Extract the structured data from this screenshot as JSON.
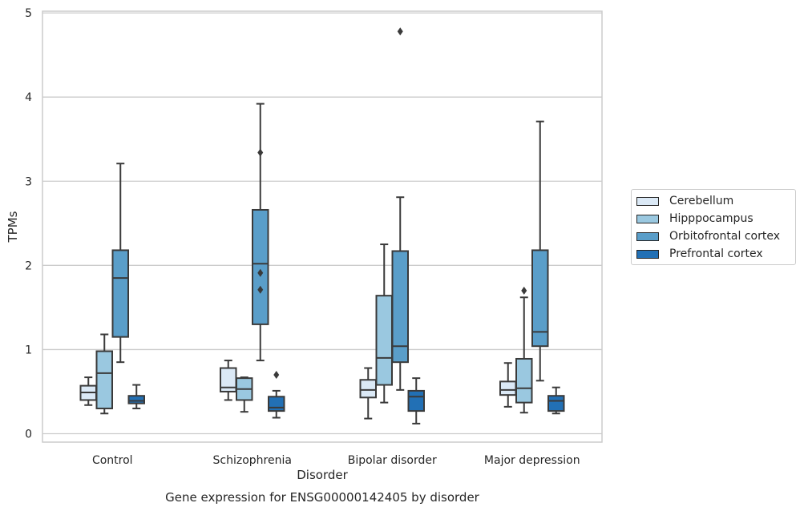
{
  "chart_data": {
    "type": "box",
    "title": "Gene expression for ENSG00000142405 by disorder",
    "xlabel": "Disorder",
    "ylabel": "TPMs",
    "ylim": [
      -0.1,
      5.02
    ],
    "yticks": [
      "0",
      "1",
      "2",
      "3",
      "4",
      "5"
    ],
    "grid": "horizontal",
    "legend_position": "right",
    "categories": [
      "Control",
      "Schizophrenia",
      "Bipolar disorder",
      "Major depression"
    ],
    "series": [
      {
        "name": "Cerebellum",
        "color": "#dbe9f6",
        "boxes": [
          {
            "whisker_low": 0.34,
            "q1": 0.4,
            "median": 0.49,
            "q3": 0.57,
            "whisker_high": 0.67,
            "outliers": []
          },
          {
            "whisker_low": 0.4,
            "q1": 0.5,
            "median": 0.55,
            "q3": 0.78,
            "whisker_high": 0.87,
            "outliers": []
          },
          {
            "whisker_low": 0.18,
            "q1": 0.43,
            "median": 0.52,
            "q3": 0.64,
            "whisker_high": 0.78,
            "outliers": []
          },
          {
            "whisker_low": 0.32,
            "q1": 0.46,
            "median": 0.52,
            "q3": 0.62,
            "whisker_high": 0.84,
            "outliers": []
          }
        ]
      },
      {
        "name": "Hipppocampus",
        "color": "#9ac8e0",
        "boxes": [
          {
            "whisker_low": 0.24,
            "q1": 0.3,
            "median": 0.72,
            "q3": 0.98,
            "whisker_high": 1.18,
            "outliers": []
          },
          {
            "whisker_low": 0.26,
            "q1": 0.4,
            "median": 0.53,
            "q3": 0.66,
            "whisker_high": 0.67,
            "outliers": []
          },
          {
            "whisker_low": 0.37,
            "q1": 0.58,
            "median": 0.9,
            "q3": 1.64,
            "whisker_high": 2.25,
            "outliers": []
          },
          {
            "whisker_low": 0.25,
            "q1": 0.37,
            "median": 0.54,
            "q3": 0.89,
            "whisker_high": 1.62,
            "outliers": [
              1.7
            ]
          }
        ]
      },
      {
        "name": "Orbitofrontal cortex",
        "color": "#5a9ec9",
        "boxes": [
          {
            "whisker_low": 0.85,
            "q1": 1.15,
            "median": 1.85,
            "q3": 2.18,
            "whisker_high": 3.21,
            "outliers": []
          },
          {
            "whisker_low": 0.87,
            "q1": 1.3,
            "median": 2.02,
            "q3": 2.66,
            "whisker_high": 3.92,
            "outliers": [
              1.71,
              1.91,
              3.34
            ]
          },
          {
            "whisker_low": 0.52,
            "q1": 0.85,
            "median": 1.04,
            "q3": 2.17,
            "whisker_high": 2.81,
            "outliers": [
              4.78
            ]
          },
          {
            "whisker_low": 0.63,
            "q1": 1.04,
            "median": 1.21,
            "q3": 2.18,
            "whisker_high": 3.71,
            "outliers": []
          }
        ]
      },
      {
        "name": "Prefrontal cortex",
        "color": "#2270b5",
        "boxes": [
          {
            "whisker_low": 0.3,
            "q1": 0.36,
            "median": 0.39,
            "q3": 0.45,
            "whisker_high": 0.58,
            "outliers": []
          },
          {
            "whisker_low": 0.19,
            "q1": 0.27,
            "median": 0.31,
            "q3": 0.44,
            "whisker_high": 0.51,
            "outliers": [
              0.7
            ]
          },
          {
            "whisker_low": 0.12,
            "q1": 0.27,
            "median": 0.44,
            "q3": 0.51,
            "whisker_high": 0.66,
            "outliers": []
          },
          {
            "whisker_low": 0.24,
            "q1": 0.27,
            "median": 0.39,
            "q3": 0.45,
            "whisker_high": 0.55,
            "outliers": []
          }
        ]
      }
    ]
  }
}
